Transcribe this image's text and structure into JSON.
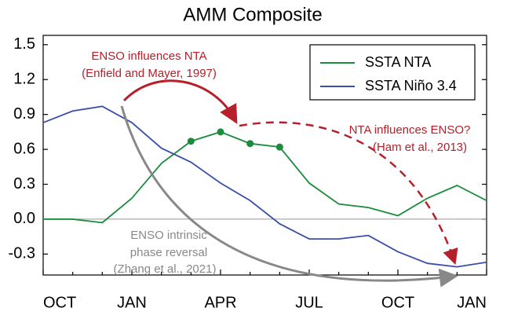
{
  "chart_data": {
    "type": "line",
    "title": "AMM Composite",
    "categories": [
      "OCT",
      null,
      null,
      "JAN",
      null,
      null,
      "APR",
      null,
      null,
      "JUL",
      null,
      null,
      "OCT",
      null,
      null,
      "JAN"
    ],
    "series": [
      {
        "name": "SSTA NTA",
        "color": "#1a8c3c",
        "values": [
          0.0,
          0.0,
          -0.03,
          0.18,
          0.48,
          0.67,
          0.75,
          0.65,
          0.62,
          0.31,
          0.13,
          0.1,
          0.03,
          0.18,
          0.29,
          0.16
        ],
        "marker_indices": [
          5,
          6,
          7,
          8
        ]
      },
      {
        "name": "SSTA Niño 3.4",
        "color": "#3b4fa8",
        "values": [
          0.83,
          0.93,
          0.97,
          0.83,
          0.61,
          0.49,
          0.31,
          0.16,
          -0.04,
          -0.17,
          -0.17,
          -0.14,
          -0.28,
          -0.38,
          -0.41,
          -0.37
        ]
      }
    ],
    "ylim": [
      -0.48,
      1.58
    ],
    "yticks": [
      {
        "value": -0.3,
        "label": "-0.3"
      },
      {
        "value": 0,
        "label": "0.0"
      },
      0.3,
      0.6,
      0.9,
      1.2,
      1.5
    ],
    "zero_line": true,
    "legend": "top-right",
    "annotations": {
      "enso_nta": [
        "ENSO influences NTA",
        "(Enfield and Mayer, 1997)"
      ],
      "nta_enso": [
        "NTA influences ENSO?",
        "(Ham et al., 2013)"
      ],
      "intrinsic": [
        "ENSO intrinsic",
        "phase reversal",
        "(Zhang et al., 2021)"
      ]
    }
  }
}
